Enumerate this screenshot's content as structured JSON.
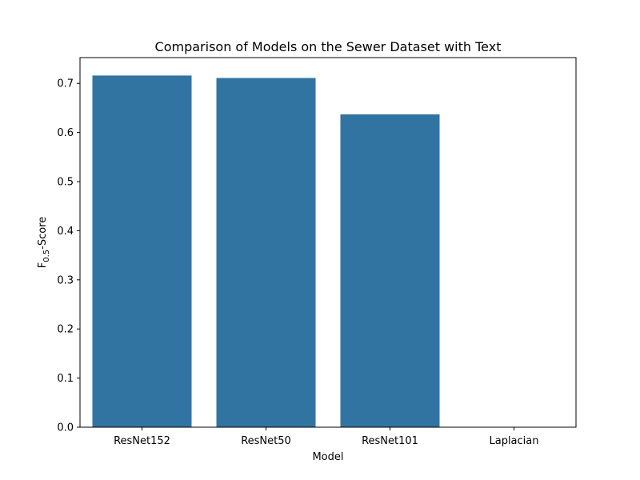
{
  "chart_data": {
    "type": "bar",
    "title": "Comparison of Models on the Sewer Dataset with Text",
    "xlabel": "Model",
    "ylabel": {
      "prefix": "F",
      "subscript": "0.5",
      "suffix": "-Score"
    },
    "categories": [
      "ResNet152",
      "ResNet50",
      "ResNet101",
      "Laplacian"
    ],
    "values": [
      0.716,
      0.711,
      0.637,
      0.0
    ],
    "ylim": [
      0,
      0.7525
    ],
    "yticks": [
      "0.0",
      "0.1",
      "0.2",
      "0.3",
      "0.4",
      "0.5",
      "0.6",
      "0.7"
    ],
    "bar_color": "#3274a1",
    "grid": false,
    "legend": "none"
  }
}
